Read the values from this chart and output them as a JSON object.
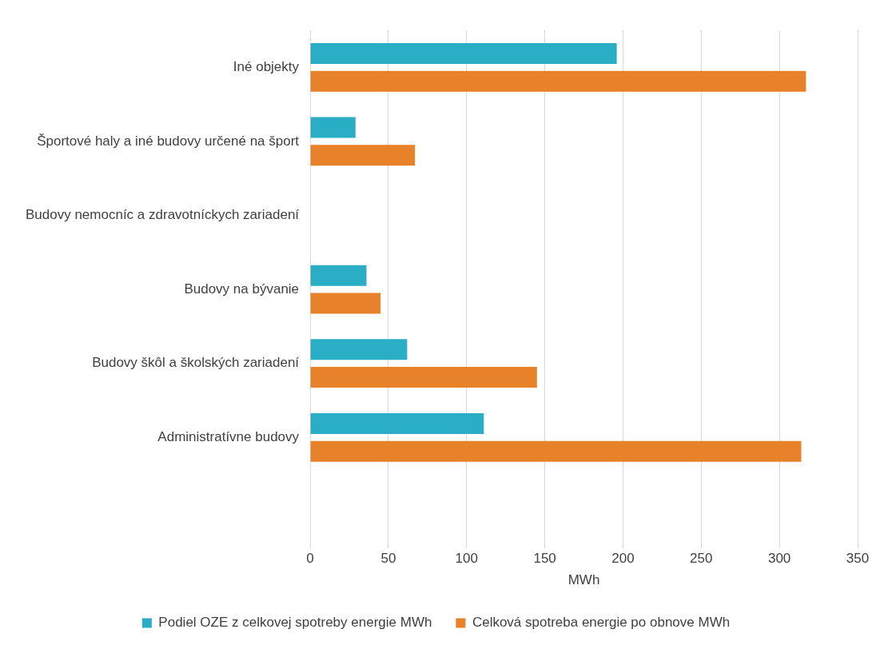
{
  "chart_data": {
    "type": "bar",
    "orientation": "horizontal",
    "xlabel": "MWh",
    "categories": [
      "Iné objekty",
      "Športové haly a iné budovy určené na šport",
      "Budovy nemocníc a zdravotníckych zariadení",
      "Budovy na bývanie",
      "Budovy škôl a školských zariadení",
      "Administratívne budovy",
      null
    ],
    "series": [
      {
        "name": "Podiel OZE z celkovej spotreby energie MWh",
        "color": "#2aaec6",
        "values": [
          196,
          29,
          null,
          36,
          62,
          111,
          null
        ]
      },
      {
        "name": "Celková spotreba energie po obnove MWh",
        "color": "#e8822a",
        "values": [
          317,
          67,
          null,
          45,
          145,
          314,
          null
        ]
      }
    ],
    "xlim": [
      0,
      350
    ],
    "xticks": [
      0,
      50,
      100,
      150,
      200,
      250,
      300,
      350
    ],
    "grid": "x",
    "legend": "bottom"
  }
}
